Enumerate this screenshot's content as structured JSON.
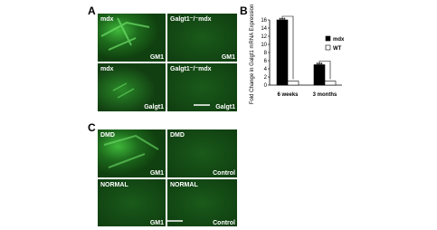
{
  "figure": {
    "panel_labels": [
      "A",
      "B",
      "C"
    ],
    "panel_a": [
      {
        "top": "mdx",
        "bottom": "GM1"
      },
      {
        "top": "Galgt1⁻/⁻mdx",
        "bottom": "GM1"
      },
      {
        "top": "mdx",
        "bottom": "Galgt1"
      },
      {
        "top": "Galgt1⁻/⁻mdx",
        "bottom": "Galgt1"
      }
    ],
    "panel_c": [
      {
        "top": "DMD",
        "bottom": "GM1"
      },
      {
        "top": "DMD",
        "bottom": "Control"
      },
      {
        "top": "NORMAL",
        "bottom": "GM1"
      },
      {
        "top": "NORMAL",
        "bottom": "Control"
      }
    ]
  },
  "chart_data": {
    "type": "bar",
    "ylabel": "Fold Change in Galgt1 mRNA Expression",
    "categories": [
      "6 weeks",
      "3 months"
    ],
    "series": [
      {
        "name": "mdx",
        "color": "#000000",
        "values": [
          16,
          5
        ]
      },
      {
        "name": "WT",
        "color": "#ffffff",
        "values": [
          1,
          1
        ]
      }
    ],
    "annotations": [
      "***",
      "***"
    ],
    "ylim": [
      0,
      16
    ],
    "yticks": [
      0,
      2,
      4,
      6,
      8,
      10,
      12,
      14,
      16
    ]
  }
}
